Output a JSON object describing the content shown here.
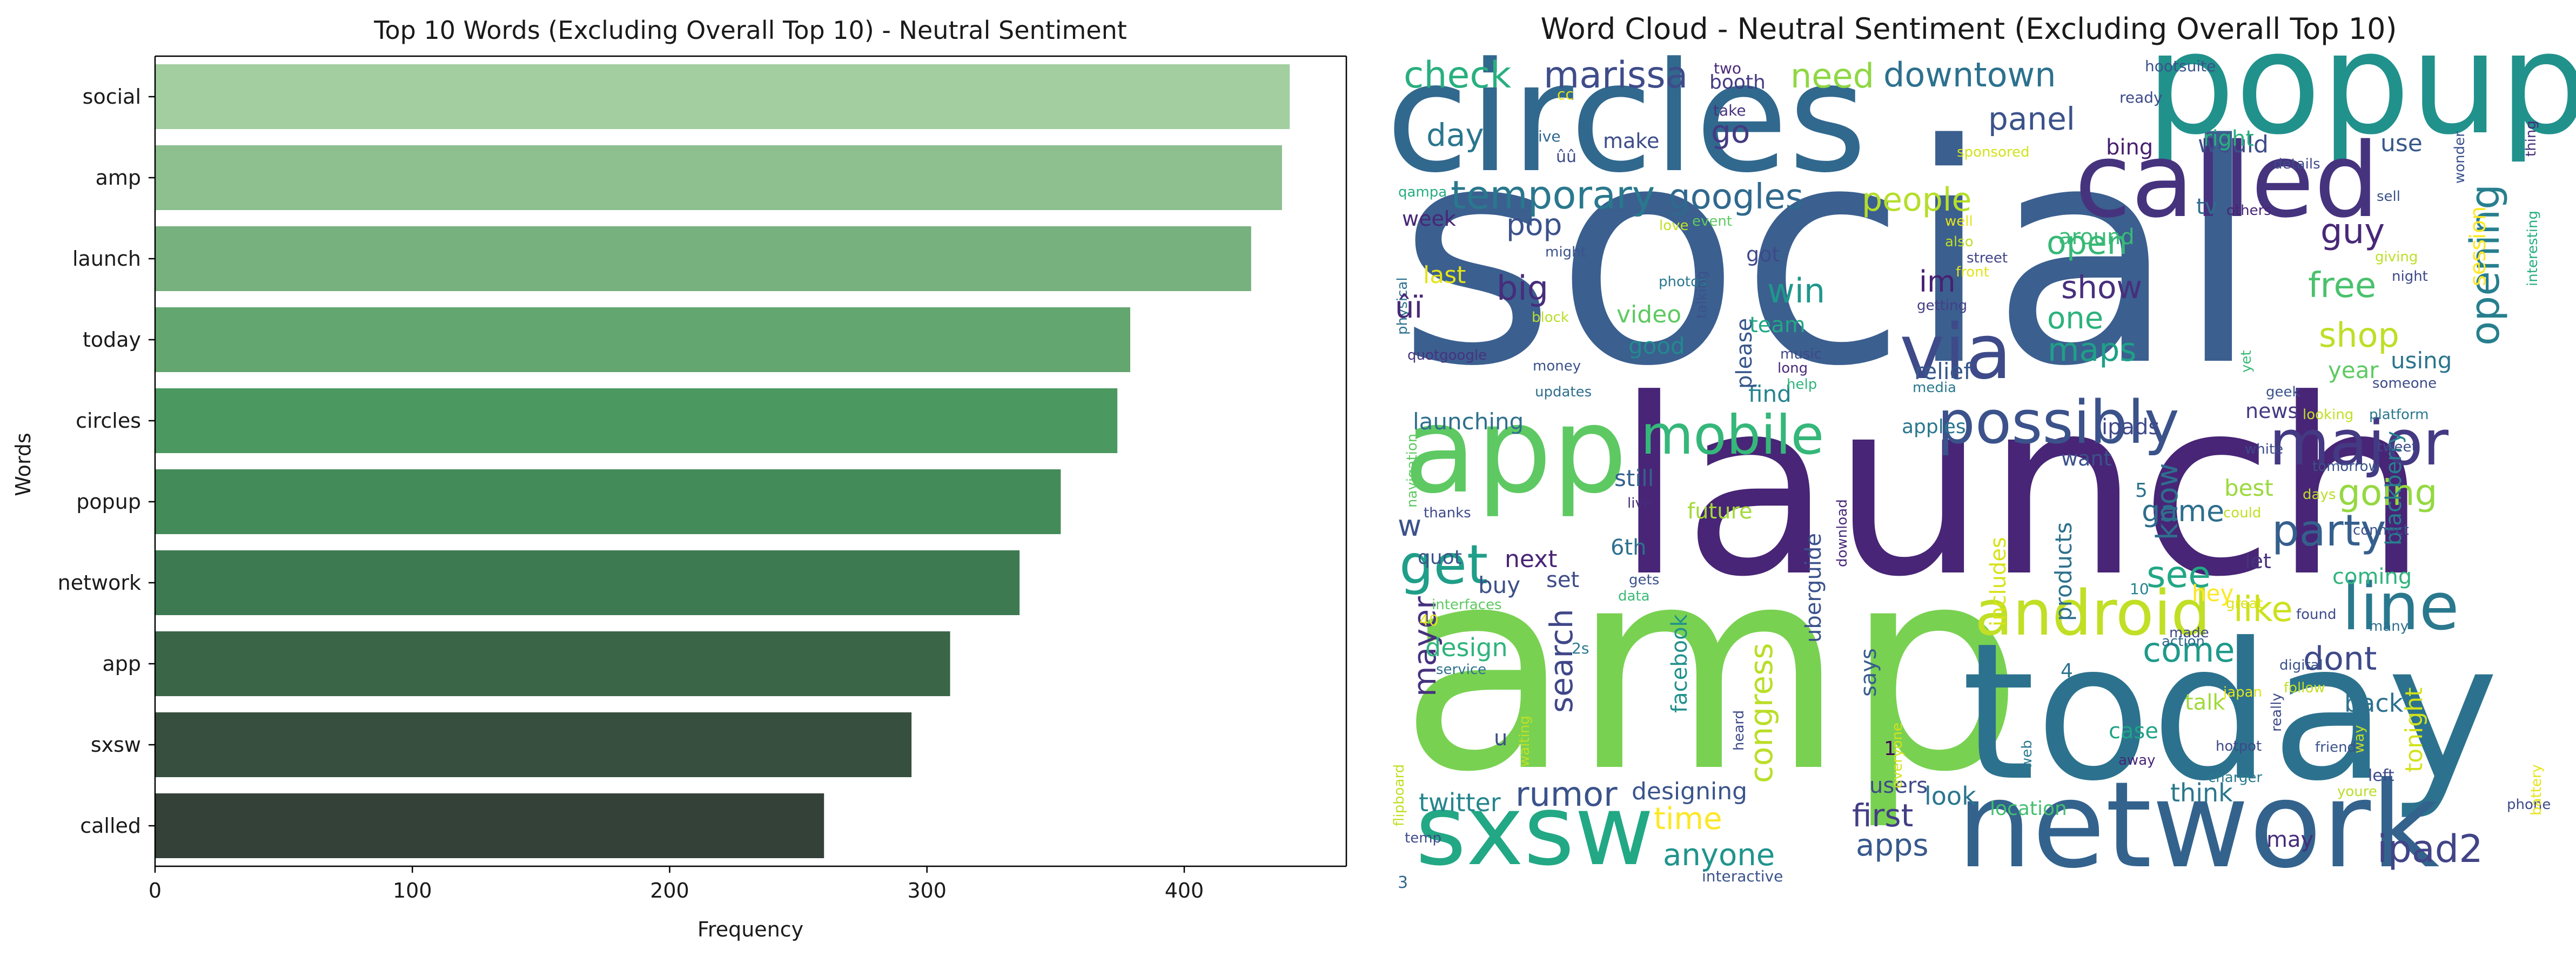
{
  "chart_data": [
    {
      "type": "bar",
      "orientation": "horizontal",
      "title": "Top 10 Words (Excluding Overall Top 10) - Neutral Sentiment",
      "xlabel": "Frequency",
      "ylabel": "Words",
      "categories": [
        "social",
        "amp",
        "launch",
        "today",
        "circles",
        "popup",
        "network",
        "app",
        "sxsw",
        "called"
      ],
      "values": [
        441,
        438,
        426,
        379,
        374,
        352,
        336,
        309,
        294,
        260
      ],
      "xlim": [
        0,
        463
      ],
      "xticks": [
        0,
        100,
        200,
        300,
        400
      ],
      "grid": false,
      "bar_colors": [
        "#a2ceA0",
        "#8dbf8f",
        "#77b17e",
        "#63a66f",
        "#4b9960",
        "#438b59",
        "#3d7a52",
        "#3a6647",
        "#374f3f",
        "#344138"
      ]
    },
    {
      "type": "wordcloud",
      "title": "Word Cloud - Neutral Sentiment (Excluding Overall Top 10)",
      "colormap": "viridis",
      "words": [
        {
          "text": "social",
          "color": "#3b5f8f"
        },
        {
          "text": "amp",
          "color": "#79d151"
        },
        {
          "text": "launch",
          "color": "#482576"
        },
        {
          "text": "today",
          "color": "#2c728e"
        },
        {
          "text": "circles",
          "color": "#31688e"
        },
        {
          "text": "popup",
          "color": "#21918c"
        },
        {
          "text": "network",
          "color": "#33638d"
        },
        {
          "text": "app",
          "color": "#5ec962"
        },
        {
          "text": "sxsw",
          "color": "#22a884"
        },
        {
          "text": "called",
          "color": "#46337e"
        },
        {
          "text": "via",
          "color": "#3e4a89"
        },
        {
          "text": "major",
          "color": "#443983"
        },
        {
          "text": "line",
          "color": "#2a788e"
        },
        {
          "text": "android",
          "color": "#c0df25"
        },
        {
          "text": "possibly",
          "color": "#3b528b"
        },
        {
          "text": "mobile",
          "color": "#35b779"
        },
        {
          "text": "get",
          "color": "#1f9e89"
        },
        {
          "text": "ipad2",
          "color": "#414487"
        },
        {
          "text": "party",
          "color": "#355f8d"
        },
        {
          "text": "opening",
          "color": "#277f8e"
        },
        {
          "text": "temporary",
          "color": "#2a788e"
        },
        {
          "text": "googles",
          "color": "#30698e"
        },
        {
          "text": "marissa",
          "color": "#3e4c8a"
        },
        {
          "text": "check",
          "color": "#29af7f"
        },
        {
          "text": "need",
          "color": "#8fd744"
        },
        {
          "text": "downtown",
          "color": "#2c718e"
        },
        {
          "text": "people",
          "color": "#b5de2b"
        },
        {
          "text": "panel",
          "color": "#3b528b"
        },
        {
          "text": "go",
          "color": "#443b84"
        },
        {
          "text": "day",
          "color": "#2a768e"
        },
        {
          "text": "pop",
          "color": "#3b528b"
        },
        {
          "text": "big",
          "color": "#472d7b"
        },
        {
          "text": "win",
          "color": "#1f978b"
        },
        {
          "text": "open",
          "color": "#37b878"
        },
        {
          "text": "show",
          "color": "#472f7d"
        },
        {
          "text": "one",
          "color": "#2db27d"
        },
        {
          "text": "maps",
          "color": "#1fa088"
        },
        {
          "text": "guy",
          "color": "#482878"
        },
        {
          "text": "free",
          "color": "#4ac16d"
        },
        {
          "text": "shop",
          "color": "#bddf26"
        },
        {
          "text": "going",
          "color": "#95d840"
        },
        {
          "text": "see",
          "color": "#22a785"
        },
        {
          "text": "like",
          "color": "#cde11d"
        },
        {
          "text": "dont",
          "color": "#3e4989"
        },
        {
          "text": "come",
          "color": "#1f9a8a"
        },
        {
          "text": "game",
          "color": "#2e6e8e"
        },
        {
          "text": "know",
          "color": "#2e6f8e"
        },
        {
          "text": "im",
          "color": "#482071"
        },
        {
          "text": "mayer",
          "color": "#46317e"
        },
        {
          "text": "search",
          "color": "#3f4788"
        },
        {
          "text": "congress",
          "color": "#bade28"
        },
        {
          "text": "rumor",
          "color": "#3b528b"
        },
        {
          "text": "first",
          "color": "#433e85"
        },
        {
          "text": "apps",
          "color": "#38598c"
        },
        {
          "text": "anyone",
          "color": "#1f948c"
        },
        {
          "text": "time",
          "color": "#fde725"
        },
        {
          "text": "designing",
          "color": "#3a548c"
        },
        {
          "text": "twitter",
          "color": "#24868e"
        },
        {
          "text": "design",
          "color": "#2fb47c"
        },
        {
          "text": "next",
          "color": "#482475"
        },
        {
          "text": "buy",
          "color": "#3c4f8a"
        },
        {
          "text": "set",
          "color": "#3e4c8a"
        },
        {
          "text": "6th",
          "color": "#2d708e"
        },
        {
          "text": "still",
          "color": "#34618d"
        },
        {
          "text": "video",
          "color": "#5ec962"
        },
        {
          "text": "good",
          "color": "#23898e"
        },
        {
          "text": "launching",
          "color": "#2e6f8e"
        },
        {
          "text": "last",
          "color": "#e5e419"
        },
        {
          "text": "find",
          "color": "#25838e"
        },
        {
          "text": "please",
          "color": "#38588c"
        },
        {
          "text": "got",
          "color": "#3e4a89"
        },
        {
          "text": "team",
          "color": "#22a785"
        },
        {
          "text": "week",
          "color": "#482677"
        },
        {
          "text": "make",
          "color": "#3d4d8a"
        },
        {
          "text": "booth",
          "color": "#443a83"
        },
        {
          "text": "would",
          "color": "#3d4e8a"
        },
        {
          "text": "bing",
          "color": "#481f70"
        },
        {
          "text": "right",
          "color": "#29af7f"
        },
        {
          "text": "use",
          "color": "#38598c"
        },
        {
          "text": "tv",
          "color": "#2e6e8e"
        },
        {
          "text": "around",
          "color": "#3aba76"
        },
        {
          "text": "session",
          "color": "#fde725"
        },
        {
          "text": "using",
          "color": "#2b748e"
        },
        {
          "text": "year",
          "color": "#5ec962"
        },
        {
          "text": "relief",
          "color": "#38588c"
        },
        {
          "text": "apples",
          "color": "#2a768e"
        },
        {
          "text": "ipads",
          "color": "#3f4889"
        },
        {
          "text": "news",
          "color": "#443983"
        },
        {
          "text": "want",
          "color": "#3b528b"
        },
        {
          "text": "best",
          "color": "#9bd93c"
        },
        {
          "text": "let",
          "color": "#46337e"
        },
        {
          "text": "hey",
          "color": "#fde725"
        },
        {
          "text": "products",
          "color": "#2d708e"
        },
        {
          "text": "includes",
          "color": "#d8e219"
        },
        {
          "text": "uberguide",
          "color": "#3b528b"
        },
        {
          "text": "says",
          "color": "#365c8d"
        },
        {
          "text": "talk",
          "color": "#a0da39"
        },
        {
          "text": "case",
          "color": "#20a386"
        },
        {
          "text": "think",
          "color": "#2a768e"
        },
        {
          "text": "look",
          "color": "#2a768e"
        },
        {
          "text": "users",
          "color": "#3e4a89"
        },
        {
          "text": "location",
          "color": "#44bf70"
        },
        {
          "text": "may",
          "color": "#472c7a"
        },
        {
          "text": "back",
          "color": "#2d718e"
        },
        {
          "text": "tonight",
          "color": "#d2e21b"
        },
        {
          "text": "blackberry",
          "color": "#27808e"
        },
        {
          "text": "coming",
          "color": "#2fb47c"
        },
        {
          "text": "future",
          "color": "#a2da37"
        },
        {
          "text": "quot",
          "color": "#3a548c"
        },
        {
          "text": "facebook",
          "color": "#21918c"
        },
        {
          "text": "u",
          "color": "#3d4d8a"
        },
        {
          "text": "w",
          "color": "#3b528b"
        },
        {
          "text": "5",
          "color": "#2c728e"
        },
        {
          "text": "4",
          "color": "#2c728e"
        },
        {
          "text": "1",
          "color": "#440154"
        },
        {
          "text": "3",
          "color": "#31688e"
        },
        {
          "text": "2s",
          "color": "#2a788e"
        },
        {
          "text": "40",
          "color": "#e2e418"
        },
        {
          "text": "10",
          "color": "#26828e"
        },
        {
          "text": "hootsuite",
          "color": "#3b528b"
        },
        {
          "text": "two",
          "color": "#482878"
        },
        {
          "text": "ready",
          "color": "#3e4a89"
        },
        {
          "text": "take",
          "color": "#46327e"
        },
        {
          "text": "cc",
          "color": "#e5e419"
        },
        {
          "text": "ive",
          "color": "#31688e"
        },
        {
          "text": "sponsored",
          "color": "#d2e21b"
        },
        {
          "text": "wonder",
          "color": "#3b528b"
        },
        {
          "text": "thing",
          "color": "#472d7b"
        },
        {
          "text": "details",
          "color": "#3e4a89"
        },
        {
          "text": "sell",
          "color": "#3b528b"
        },
        {
          "text": "qampa",
          "color": "#26ad81"
        },
        {
          "text": "event",
          "color": "#5ec962"
        },
        {
          "text": "love",
          "color": "#c2df23"
        },
        {
          "text": "well",
          "color": "#e5e419"
        },
        {
          "text": "others",
          "color": "#482475"
        },
        {
          "text": "might",
          "color": "#3b528b"
        },
        {
          "text": "also",
          "color": "#bddf26"
        },
        {
          "text": "street",
          "color": "#414487"
        },
        {
          "text": "front",
          "color": "#e2e418"
        },
        {
          "text": "night",
          "color": "#3e4989"
        },
        {
          "text": "giving",
          "color": "#bddf26"
        },
        {
          "text": "interesting",
          "color": "#27ad81"
        },
        {
          "text": "physical",
          "color": "#2c728e"
        },
        {
          "text": "photos",
          "color": "#2a788e"
        },
        {
          "text": "getting",
          "color": "#433e85"
        },
        {
          "text": "block",
          "color": "#b8de29"
        },
        {
          "text": "talking",
          "color": "#3b528b"
        },
        {
          "text": "music",
          "color": "#3e4989"
        },
        {
          "text": "long",
          "color": "#482878"
        },
        {
          "text": "help",
          "color": "#2fb47c"
        },
        {
          "text": "quotgoogle",
          "color": "#46337e"
        },
        {
          "text": "money",
          "color": "#3b528b"
        },
        {
          "text": "updates",
          "color": "#2e6e8e"
        },
        {
          "text": "media",
          "color": "#2a788e"
        },
        {
          "text": "yet",
          "color": "#3aba76"
        },
        {
          "text": "someone",
          "color": "#3e4a89"
        },
        {
          "text": "geek",
          "color": "#3b528b"
        },
        {
          "text": "looking",
          "color": "#c0df25"
        },
        {
          "text": "platform",
          "color": "#2a788e"
        },
        {
          "text": "tweet",
          "color": "#3e4a89"
        },
        {
          "text": "navigation",
          "color": "#5ec962"
        },
        {
          "text": "thanks",
          "color": "#3e4a89"
        },
        {
          "text": "live",
          "color": "#472c7a"
        },
        {
          "text": "gets",
          "color": "#3b528b"
        },
        {
          "text": "download",
          "color": "#482878"
        },
        {
          "text": "white",
          "color": "#3e4989"
        },
        {
          "text": "tomorrow",
          "color": "#3b528b"
        },
        {
          "text": "days",
          "color": "#bade28"
        },
        {
          "text": "connect",
          "color": "#3b528b"
        },
        {
          "text": "could",
          "color": "#c0df25"
        },
        {
          "text": "data",
          "color": "#3aba76"
        },
        {
          "text": "interfaces",
          "color": "#5ec962"
        },
        {
          "text": "great",
          "color": "#dde318"
        },
        {
          "text": "made",
          "color": "#3e4a89"
        },
        {
          "text": "action",
          "color": "#31688e"
        },
        {
          "text": "found",
          "color": "#3e4a89"
        },
        {
          "text": "many",
          "color": "#2e6e8e"
        },
        {
          "text": "digital",
          "color": "#3b528b"
        },
        {
          "text": "follow",
          "color": "#c2df23"
        },
        {
          "text": "service",
          "color": "#2c728e"
        },
        {
          "text": "japan",
          "color": "#e5e419"
        },
        {
          "text": "hotpot",
          "color": "#3e4989"
        },
        {
          "text": "really",
          "color": "#3e4a89"
        },
        {
          "text": "friends",
          "color": "#3b528b"
        },
        {
          "text": "waiting",
          "color": "#c0df25"
        },
        {
          "text": "everyone",
          "color": "#d2e21b"
        },
        {
          "text": "heard",
          "color": "#3e4a89"
        },
        {
          "text": "web",
          "color": "#2a788e"
        },
        {
          "text": "away",
          "color": "#482475"
        },
        {
          "text": "way",
          "color": "#c2df23"
        },
        {
          "text": "left",
          "color": "#3e4a89"
        },
        {
          "text": "charger",
          "color": "#2a788e"
        },
        {
          "text": "youre",
          "color": "#bade28"
        },
        {
          "text": "phone",
          "color": "#3e4a89"
        },
        {
          "text": "battery",
          "color": "#e5e419"
        },
        {
          "text": "flipboard",
          "color": "#c0df25"
        },
        {
          "text": "temp",
          "color": "#3e4a89"
        },
        {
          "text": "interactive",
          "color": "#3b528b"
        },
        {
          "text": "ûï",
          "color": "#482878"
        },
        {
          "text": "ûû",
          "color": "#3e4a89"
        }
      ]
    }
  ]
}
